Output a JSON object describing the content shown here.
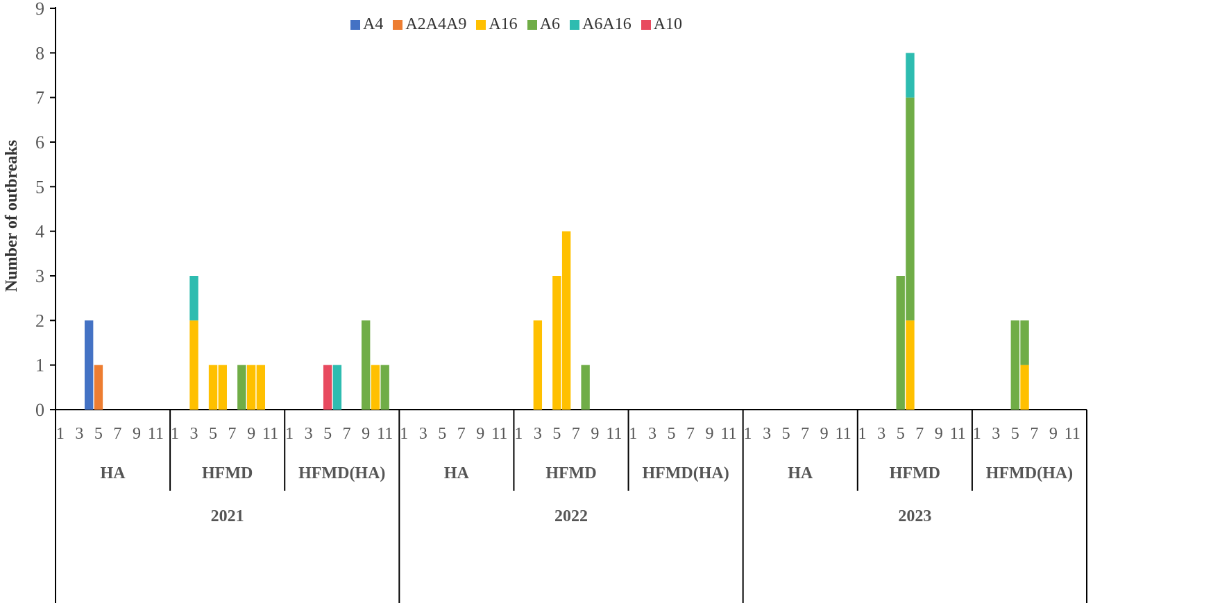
{
  "chart_data": {
    "type": "bar",
    "stacked": true,
    "title": "",
    "xlabel": "",
    "ylabel": "Number of outbreaks",
    "ylim": [
      0,
      9
    ],
    "yticks": [
      0,
      1,
      2,
      3,
      4,
      5,
      6,
      7,
      8,
      9
    ],
    "grid": false,
    "legend_position": "top",
    "month_tick_labels": [
      "1",
      "3",
      "5",
      "7",
      "9",
      "11"
    ],
    "groups": [
      {
        "year": "2021",
        "categories": [
          "HA",
          "HFMD",
          "HFMD(HA)"
        ]
      },
      {
        "year": "2022",
        "categories": [
          "HA",
          "HFMD",
          "HFMD(HA)"
        ]
      },
      {
        "year": "2023",
        "categories": [
          "HA",
          "HFMD",
          "HFMD(HA)"
        ]
      }
    ],
    "series": [
      {
        "name": "A4",
        "color": "#4472c4",
        "points": [
          {
            "year": "2021",
            "category": "HA",
            "month": 4,
            "value": 2
          }
        ]
      },
      {
        "name": "A2A4A9",
        "color": "#ed7d31",
        "points": [
          {
            "year": "2021",
            "category": "HA",
            "month": 5,
            "value": 1
          }
        ]
      },
      {
        "name": "A16",
        "color": "#ffc000",
        "points": [
          {
            "year": "2021",
            "category": "HFMD",
            "month": 3,
            "value": 2
          },
          {
            "year": "2021",
            "category": "HFMD",
            "month": 5,
            "value": 1
          },
          {
            "year": "2021",
            "category": "HFMD",
            "month": 6,
            "value": 1
          },
          {
            "year": "2021",
            "category": "HFMD",
            "month": 9,
            "value": 1
          },
          {
            "year": "2021",
            "category": "HFMD",
            "month": 10,
            "value": 1
          },
          {
            "year": "2021",
            "category": "HFMD(HA)",
            "month": 10,
            "value": 1
          },
          {
            "year": "2022",
            "category": "HFMD",
            "month": 3,
            "value": 2
          },
          {
            "year": "2022",
            "category": "HFMD",
            "month": 5,
            "value": 3
          },
          {
            "year": "2022",
            "category": "HFMD",
            "month": 6,
            "value": 4
          },
          {
            "year": "2023",
            "category": "HFMD",
            "month": 6,
            "value": 2
          },
          {
            "year": "2023",
            "category": "HFMD(HA)",
            "month": 6,
            "value": 1
          }
        ]
      },
      {
        "name": "A6",
        "color": "#70ad47",
        "points": [
          {
            "year": "2021",
            "category": "HFMD",
            "month": 8,
            "value": 1
          },
          {
            "year": "2021",
            "category": "HFMD(HA)",
            "month": 9,
            "value": 2
          },
          {
            "year": "2021",
            "category": "HFMD(HA)",
            "month": 11,
            "value": 1
          },
          {
            "year": "2022",
            "category": "HFMD",
            "month": 8,
            "value": 1
          },
          {
            "year": "2023",
            "category": "HFMD",
            "month": 5,
            "value": 3
          },
          {
            "year": "2023",
            "category": "HFMD",
            "month": 6,
            "value": 5
          },
          {
            "year": "2023",
            "category": "HFMD(HA)",
            "month": 5,
            "value": 2
          },
          {
            "year": "2023",
            "category": "HFMD(HA)",
            "month": 6,
            "value": 1
          }
        ]
      },
      {
        "name": "A6A16",
        "color": "#2ebcb0",
        "points": [
          {
            "year": "2021",
            "category": "HFMD",
            "month": 3,
            "value": 1
          },
          {
            "year": "2021",
            "category": "HFMD(HA)",
            "month": 6,
            "value": 1
          },
          {
            "year": "2023",
            "category": "HFMD",
            "month": 6,
            "value": 1
          }
        ]
      },
      {
        "name": "A10",
        "color": "#e84a5f",
        "points": [
          {
            "year": "2021",
            "category": "HFMD(HA)",
            "month": 5,
            "value": 1
          }
        ]
      }
    ]
  }
}
